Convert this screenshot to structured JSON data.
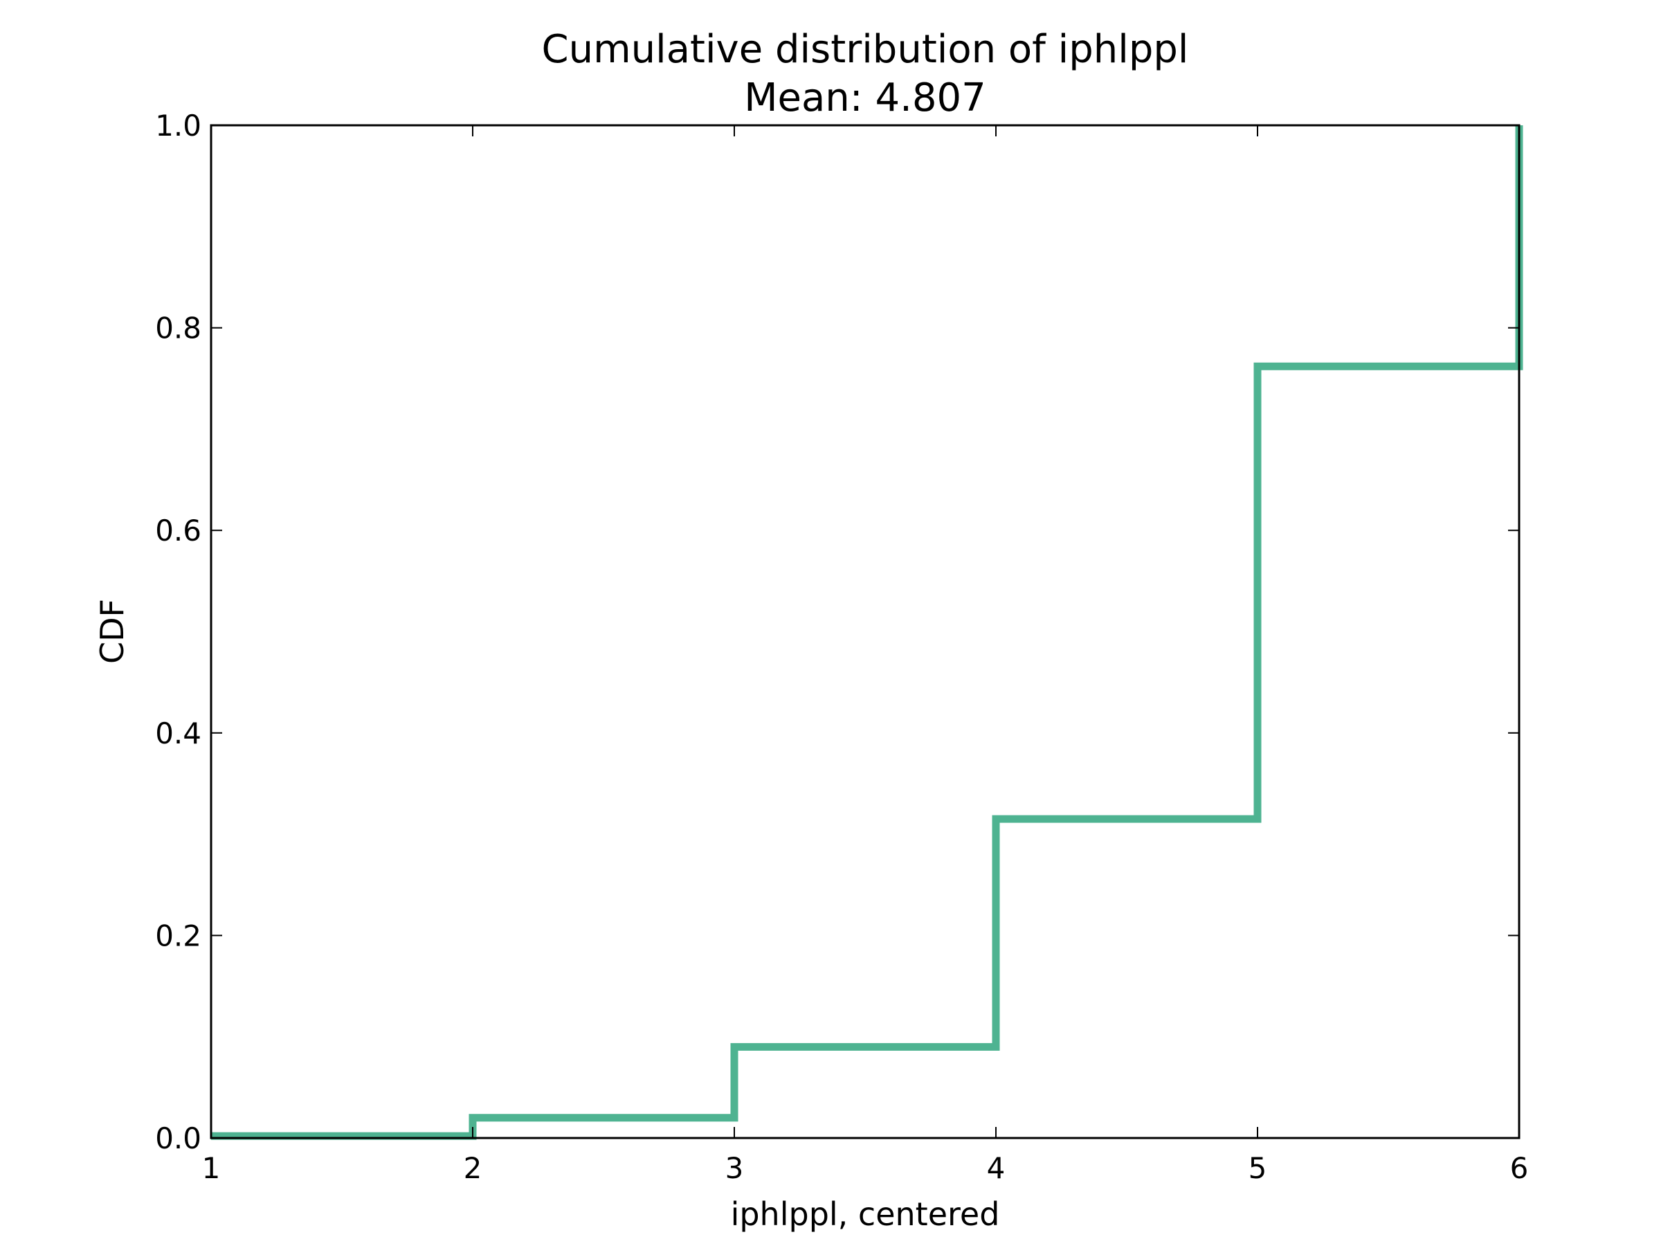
{
  "chart_data": {
    "type": "line",
    "step": "post",
    "title": "Cumulative distribution of iphlppl",
    "subtitle": "Mean: 4.807",
    "xlabel": "iphlppl, centered",
    "ylabel": "CDF",
    "xlim": [
      1,
      6
    ],
    "ylim": [
      0,
      1
    ],
    "x_ticks": [
      1,
      2,
      3,
      4,
      5,
      6
    ],
    "y_ticks": [
      0,
      0.2,
      0.4,
      0.6,
      0.8,
      1.0
    ],
    "x_tick_labels": [
      "1",
      "2",
      "3",
      "4",
      "5",
      "6"
    ],
    "y_tick_labels": [
      "0.0",
      "0.2",
      "0.4",
      "0.6",
      "0.8",
      "1.0"
    ],
    "grid": false,
    "legend": "none",
    "series": [
      {
        "color": "#4eb391",
        "x": [
          1,
          2,
          3,
          4,
          5,
          6
        ],
        "y": [
          0.002,
          0.02,
          0.09,
          0.315,
          0.762,
          1.0
        ]
      }
    ]
  }
}
